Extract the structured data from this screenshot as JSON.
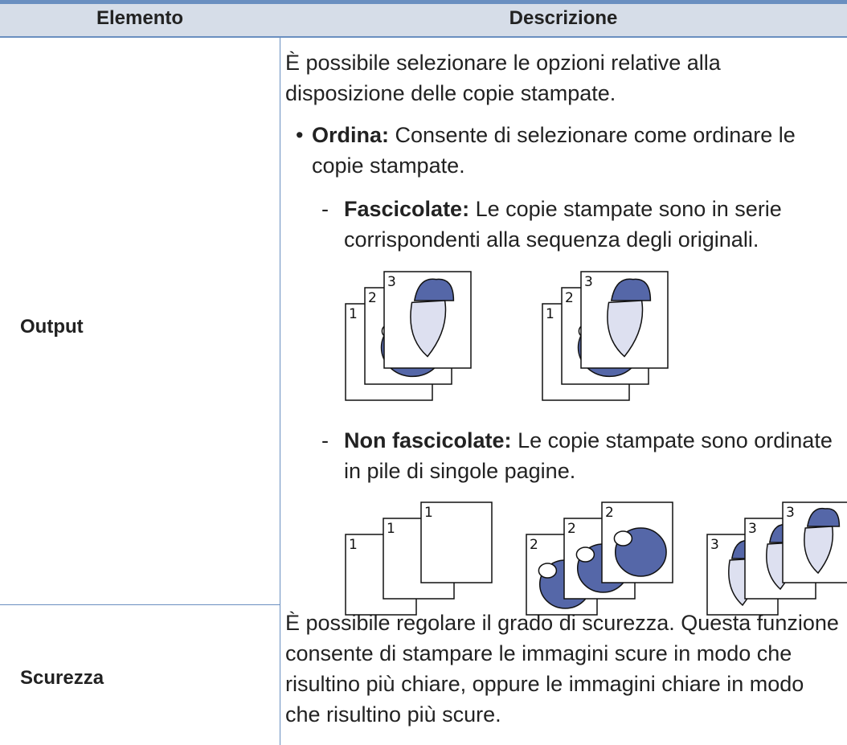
{
  "table": {
    "headers": [
      "Elemento",
      "Descrizione"
    ],
    "rows": [
      {
        "label": "Output",
        "intro": "È possibile selezionare le opzioni relative alla disposizione delle copie stampate.",
        "bullet": {
          "term": "Ordina:",
          "text": "Consente di selezionare come ordinare le copie stampate."
        },
        "subitems": [
          {
            "term": "Fascicolate:",
            "text": "Le copie stampate sono in serie corrispondenti alla sequenza degli originali.",
            "figure": [
              [
                "1",
                "2",
                "3"
              ],
              [
                "1",
                "2",
                "3"
              ]
            ]
          },
          {
            "term": "Non fascicolate:",
            "text": "Le copie stampate sono ordinate in pile di singole pagine.",
            "figure": [
              [
                "1",
                "1",
                "1"
              ],
              [
                "2",
                "2",
                "2"
              ],
              [
                "3",
                "3",
                "3"
              ]
            ]
          }
        ]
      },
      {
        "label": "Scurezza",
        "text": "È possibile regolare il grado di scurezza. Questa funzione consente di stampare le immagini scure in modo che risultino più chiare, oppure le immagini chiare in modo che risultino più scure."
      }
    ]
  }
}
